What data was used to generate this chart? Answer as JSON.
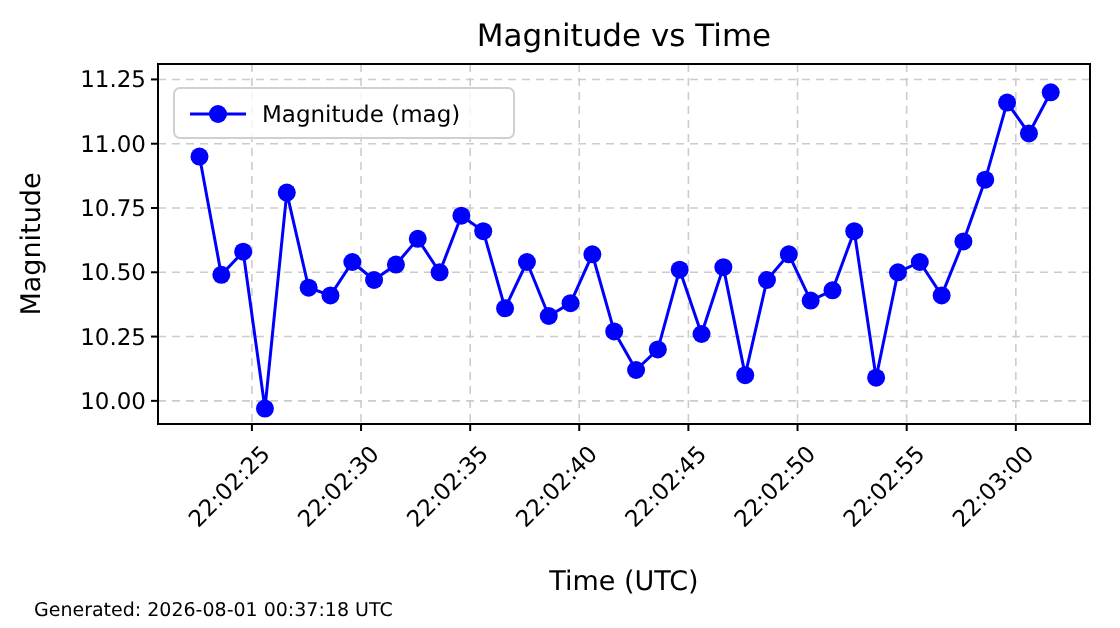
{
  "chart_data": {
    "type": "line",
    "title": "Magnitude vs Time",
    "xlabel": "Time (UTC)",
    "ylabel": "Magnitude",
    "annotations": [
      "Generated: 2026-08-01 00:37:18 UTC"
    ],
    "x": [
      22.039611,
      22.039889,
      22.040167,
      22.040444,
      22.040722,
      22.041,
      22.041278,
      22.041556,
      22.041833,
      22.042111,
      22.042389,
      22.042667,
      22.042944,
      22.043222,
      22.0435,
      22.043778,
      22.044056,
      22.044333,
      22.044611,
      22.044889,
      22.045167,
      22.045444,
      22.045722,
      22.046,
      22.046278,
      22.046556,
      22.046833,
      22.047111,
      22.047389,
      22.047667,
      22.047944,
      22.048222,
      22.0485,
      22.048778,
      22.049056,
      22.049333,
      22.049611,
      22.049889,
      22.050167,
      22.050444
    ],
    "series": [
      {
        "name": "Magnitude (mag)",
        "color": "#0000ff",
        "values": [
          10.95,
          10.49,
          10.58,
          9.97,
          10.81,
          10.44,
          10.41,
          10.54,
          10.47,
          10.53,
          10.63,
          10.5,
          10.72,
          10.66,
          10.36,
          10.54,
          10.33,
          10.38,
          10.57,
          10.27,
          10.12,
          10.2,
          10.51,
          10.26,
          10.52,
          10.1,
          10.47,
          10.57,
          10.39,
          10.43,
          10.66,
          10.09,
          10.5,
          10.54,
          10.41,
          10.62,
          10.86,
          11.16,
          11.04,
          11.2
        ]
      }
    ],
    "xlim": [
      22.039083,
      22.050944
    ],
    "xticks": [
      {
        "value": 22.040278,
        "label": "22:02:25"
      },
      {
        "value": 22.041667,
        "label": "22:02:30"
      },
      {
        "value": 22.043056,
        "label": "22:02:35"
      },
      {
        "value": 22.044444,
        "label": "22:02:40"
      },
      {
        "value": 22.045833,
        "label": "22:02:45"
      },
      {
        "value": 22.047222,
        "label": "22:02:50"
      },
      {
        "value": 22.048611,
        "label": "22:02:55"
      },
      {
        "value": 22.05,
        "label": "22:03:00"
      }
    ],
    "ylim": [
      9.91,
      11.31
    ],
    "yticks": [
      {
        "value": 10,
        "label": "10.00"
      },
      {
        "value": 10.25,
        "label": "10.25"
      },
      {
        "value": 10.5,
        "label": "10.50"
      },
      {
        "value": 10.75,
        "label": "10.75"
      },
      {
        "value": 11,
        "label": "11.00"
      },
      {
        "value": 11.25,
        "label": "11.25"
      }
    ],
    "grid": true,
    "legend": "top left",
    "marker": "circle",
    "line_style": "solid"
  }
}
